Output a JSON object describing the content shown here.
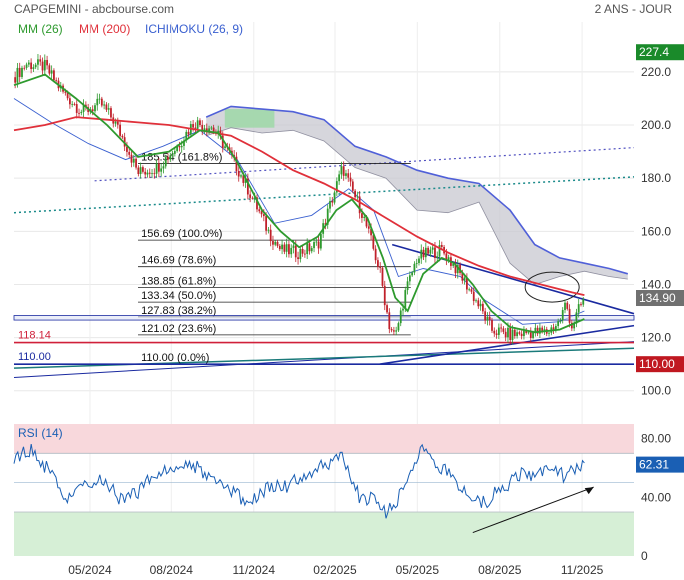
{
  "header": {
    "title": "CAPGEMINI - abcbourse.com",
    "period": "2 ANS - JOUR"
  },
  "legend": [
    {
      "label": "MM (26)",
      "color": "#2e9a2e"
    },
    {
      "label": "MM (200)",
      "color": "#e0303a"
    },
    {
      "label": "ICHIMOKU (26, 9)",
      "color": "#3a60d0"
    }
  ],
  "chart_data": [
    {
      "type": "candlestick",
      "name": "price-panel",
      "ylim": [
        92,
        232
      ],
      "yticks": [
        100,
        120,
        140,
        160,
        180,
        200,
        220
      ],
      "ytick_labels": [
        "100.0",
        "120.0",
        "140.0",
        "160.0",
        "180.0",
        "200.0",
        "220.0"
      ],
      "last_value": "134.90",
      "max_value": "227.4",
      "x_labels": [
        "05/2024",
        "08/2024",
        "11/2024",
        "02/2025",
        "05/2025",
        "08/2025",
        "11/2025"
      ],
      "x_label_pos": [
        0.1225,
        0.2537,
        0.3867,
        0.5177,
        0.6505,
        0.7835,
        0.9163
      ],
      "price_keypoints": [
        [
          0.0,
          218
        ],
        [
          0.02,
          223
        ],
        [
          0.05,
          222
        ],
        [
          0.08,
          212
        ],
        [
          0.11,
          205
        ],
        [
          0.14,
          208
        ],
        [
          0.16,
          202
        ],
        [
          0.18,
          193
        ],
        [
          0.2,
          182
        ],
        [
          0.23,
          184
        ],
        [
          0.26,
          191
        ],
        [
          0.29,
          201
        ],
        [
          0.32,
          199
        ],
        [
          0.34,
          192
        ],
        [
          0.36,
          184
        ],
        [
          0.39,
          170
        ],
        [
          0.41,
          160
        ],
        [
          0.43,
          153
        ],
        [
          0.46,
          152
        ],
        [
          0.49,
          155
        ],
        [
          0.51,
          170
        ],
        [
          0.53,
          184
        ],
        [
          0.54,
          178
        ],
        [
          0.56,
          168
        ],
        [
          0.575,
          157
        ],
        [
          0.59,
          145
        ],
        [
          0.605,
          125
        ],
        [
          0.615,
          120
        ],
        [
          0.63,
          136
        ],
        [
          0.65,
          150
        ],
        [
          0.67,
          152
        ],
        [
          0.69,
          153
        ],
        [
          0.71,
          147
        ],
        [
          0.73,
          140
        ],
        [
          0.75,
          132
        ],
        [
          0.77,
          123
        ],
        [
          0.8,
          121
        ],
        [
          0.83,
          122
        ],
        [
          0.86,
          122
        ],
        [
          0.88,
          126
        ],
        [
          0.89,
          133
        ],
        [
          0.9,
          124
        ],
        [
          0.91,
          130
        ],
        [
          0.92,
          134.9
        ]
      ],
      "rsi_keypoints": [
        [
          0.0,
          68
        ],
        [
          0.03,
          72
        ],
        [
          0.06,
          56
        ],
        [
          0.08,
          38
        ],
        [
          0.11,
          46
        ],
        [
          0.14,
          52
        ],
        [
          0.17,
          40
        ],
        [
          0.2,
          44
        ],
        [
          0.23,
          56
        ],
        [
          0.26,
          60
        ],
        [
          0.29,
          62
        ],
        [
          0.32,
          50
        ],
        [
          0.35,
          44
        ],
        [
          0.38,
          36
        ],
        [
          0.41,
          46
        ],
        [
          0.44,
          48
        ],
        [
          0.47,
          56
        ],
        [
          0.5,
          62
        ],
        [
          0.53,
          68
        ],
        [
          0.56,
          38
        ],
        [
          0.58,
          40
        ],
        [
          0.6,
          30
        ],
        [
          0.62,
          40
        ],
        [
          0.64,
          60
        ],
        [
          0.66,
          72
        ],
        [
          0.68,
          64
        ],
        [
          0.7,
          56
        ],
        [
          0.72,
          44
        ],
        [
          0.74,
          42
        ],
        [
          0.76,
          36
        ],
        [
          0.78,
          44
        ],
        [
          0.8,
          50
        ],
        [
          0.82,
          56
        ],
        [
          0.85,
          56
        ],
        [
          0.87,
          62
        ],
        [
          0.89,
          52
        ],
        [
          0.9,
          62
        ],
        [
          0.91,
          58
        ],
        [
          0.92,
          62.31
        ]
      ],
      "ma26": [
        [
          0.0,
          215
        ],
        [
          0.05,
          219
        ],
        [
          0.1,
          210
        ],
        [
          0.15,
          200
        ],
        [
          0.2,
          188
        ],
        [
          0.25,
          190
        ],
        [
          0.3,
          198
        ],
        [
          0.33,
          197
        ],
        [
          0.36,
          186
        ],
        [
          0.4,
          168
        ],
        [
          0.43,
          160
        ],
        [
          0.46,
          154
        ],
        [
          0.49,
          158
        ],
        [
          0.52,
          168
        ],
        [
          0.545,
          172
        ],
        [
          0.57,
          165
        ],
        [
          0.595,
          150
        ],
        [
          0.615,
          135
        ],
        [
          0.635,
          130
        ],
        [
          0.66,
          144
        ],
        [
          0.69,
          150
        ],
        [
          0.71,
          148
        ],
        [
          0.74,
          140
        ],
        [
          0.77,
          130
        ],
        [
          0.8,
          124
        ],
        [
          0.84,
          122
        ],
        [
          0.88,
          123
        ],
        [
          0.92,
          127
        ]
      ],
      "ma200": [
        [
          0.0,
          198
        ],
        [
          0.05,
          200
        ],
        [
          0.1,
          203
        ],
        [
          0.15,
          202
        ],
        [
          0.2,
          201
        ],
        [
          0.25,
          200
        ],
        [
          0.3,
          198
        ],
        [
          0.35,
          196
        ],
        [
          0.4,
          190
        ],
        [
          0.45,
          183
        ],
        [
          0.5,
          178
        ],
        [
          0.55,
          172
        ],
        [
          0.6,
          165
        ],
        [
          0.65,
          158
        ],
        [
          0.7,
          152
        ],
        [
          0.75,
          147
        ],
        [
          0.8,
          143
        ],
        [
          0.85,
          140
        ],
        [
          0.9,
          137
        ],
        [
          0.92,
          136
        ]
      ],
      "ichimoku_tenkan": [
        [
          0.0,
          210
        ],
        [
          0.06,
          201
        ],
        [
          0.12,
          193
        ],
        [
          0.18,
          187
        ],
        [
          0.24,
          192
        ],
        [
          0.3,
          198
        ],
        [
          0.36,
          187
        ],
        [
          0.42,
          163
        ],
        [
          0.48,
          166
        ],
        [
          0.54,
          176
        ],
        [
          0.58,
          168
        ],
        [
          0.62,
          143
        ],
        [
          0.66,
          146
        ],
        [
          0.72,
          143
        ],
        [
          0.76,
          134
        ],
        [
          0.82,
          125
        ],
        [
          0.88,
          126
        ],
        [
          0.92,
          130
        ]
      ],
      "cloud_upper": [
        [
          0.31,
          203
        ],
        [
          0.35,
          207
        ],
        [
          0.4,
          206
        ],
        [
          0.45,
          205
        ],
        [
          0.5,
          202
        ],
        [
          0.55,
          192
        ],
        [
          0.6,
          188
        ],
        [
          0.65,
          183
        ],
        [
          0.7,
          180
        ],
        [
          0.75,
          178
        ],
        [
          0.8,
          168
        ],
        [
          0.84,
          155
        ],
        [
          0.88,
          150
        ],
        [
          0.92,
          148
        ],
        [
          0.96,
          146
        ],
        [
          0.99,
          144
        ]
      ],
      "cloud_lower": [
        [
          0.31,
          196
        ],
        [
          0.35,
          199
        ],
        [
          0.4,
          197
        ],
        [
          0.45,
          198
        ],
        [
          0.5,
          194
        ],
        [
          0.55,
          184
        ],
        [
          0.6,
          180
        ],
        [
          0.65,
          168
        ],
        [
          0.7,
          167
        ],
        [
          0.75,
          171
        ],
        [
          0.8,
          148
        ],
        [
          0.84,
          140
        ],
        [
          0.88,
          143
        ],
        [
          0.92,
          145
        ],
        [
          0.96,
          143
        ],
        [
          0.99,
          142
        ]
      ],
      "fibonacci": [
        {
          "label": "185.54  (161.8%)",
          "value": 185.54
        },
        {
          "label": "156.69  (100.0%)",
          "value": 156.69
        },
        {
          "label": "146.69  (78.6%)",
          "value": 146.69
        },
        {
          "label": "138.85  (61.8%)",
          "value": 138.85
        },
        {
          "label": "133.34  (50.0%)",
          "value": 133.34
        },
        {
          "label": "127.83  (38.2%)",
          "value": 127.83
        },
        {
          "label": "121.02  (23.6%)",
          "value": 121.02
        },
        {
          "label": "110.00  (0.0%)",
          "value": 110.0
        }
      ],
      "horizontal_levels": [
        {
          "label": "118.14",
          "value": 118.14,
          "color": "#d0203a"
        },
        {
          "label": "110.00",
          "value": 110.0,
          "color": "#1a2aa0"
        }
      ],
      "level_badge": "110.00"
    },
    {
      "type": "line",
      "name": "rsi-panel",
      "title": "RSI (14)",
      "ylim": [
        0,
        90
      ],
      "yticks": [
        0,
        40,
        80
      ],
      "ytick_labels": [
        "0",
        "40.00",
        "80.00"
      ],
      "last_value": "62.31",
      "overbought": 70,
      "oversold": 30
    }
  ],
  "colors": {
    "candle_up": "#2e9a2e",
    "candle_down": "#c0202a",
    "grid": "#e8e8e8",
    "cloud": "#c8c8d0",
    "cloud_green": "#9ad8a4",
    "rsi_line": "#1a5fb4",
    "rsi_high_band": "#f8d8dc",
    "rsi_low_band": "#d6efd6",
    "badge_green": "#1a8a2a",
    "badge_red": "#c01820",
    "badge_grey": "#707070",
    "badge_blue": "#1a5fb4"
  }
}
